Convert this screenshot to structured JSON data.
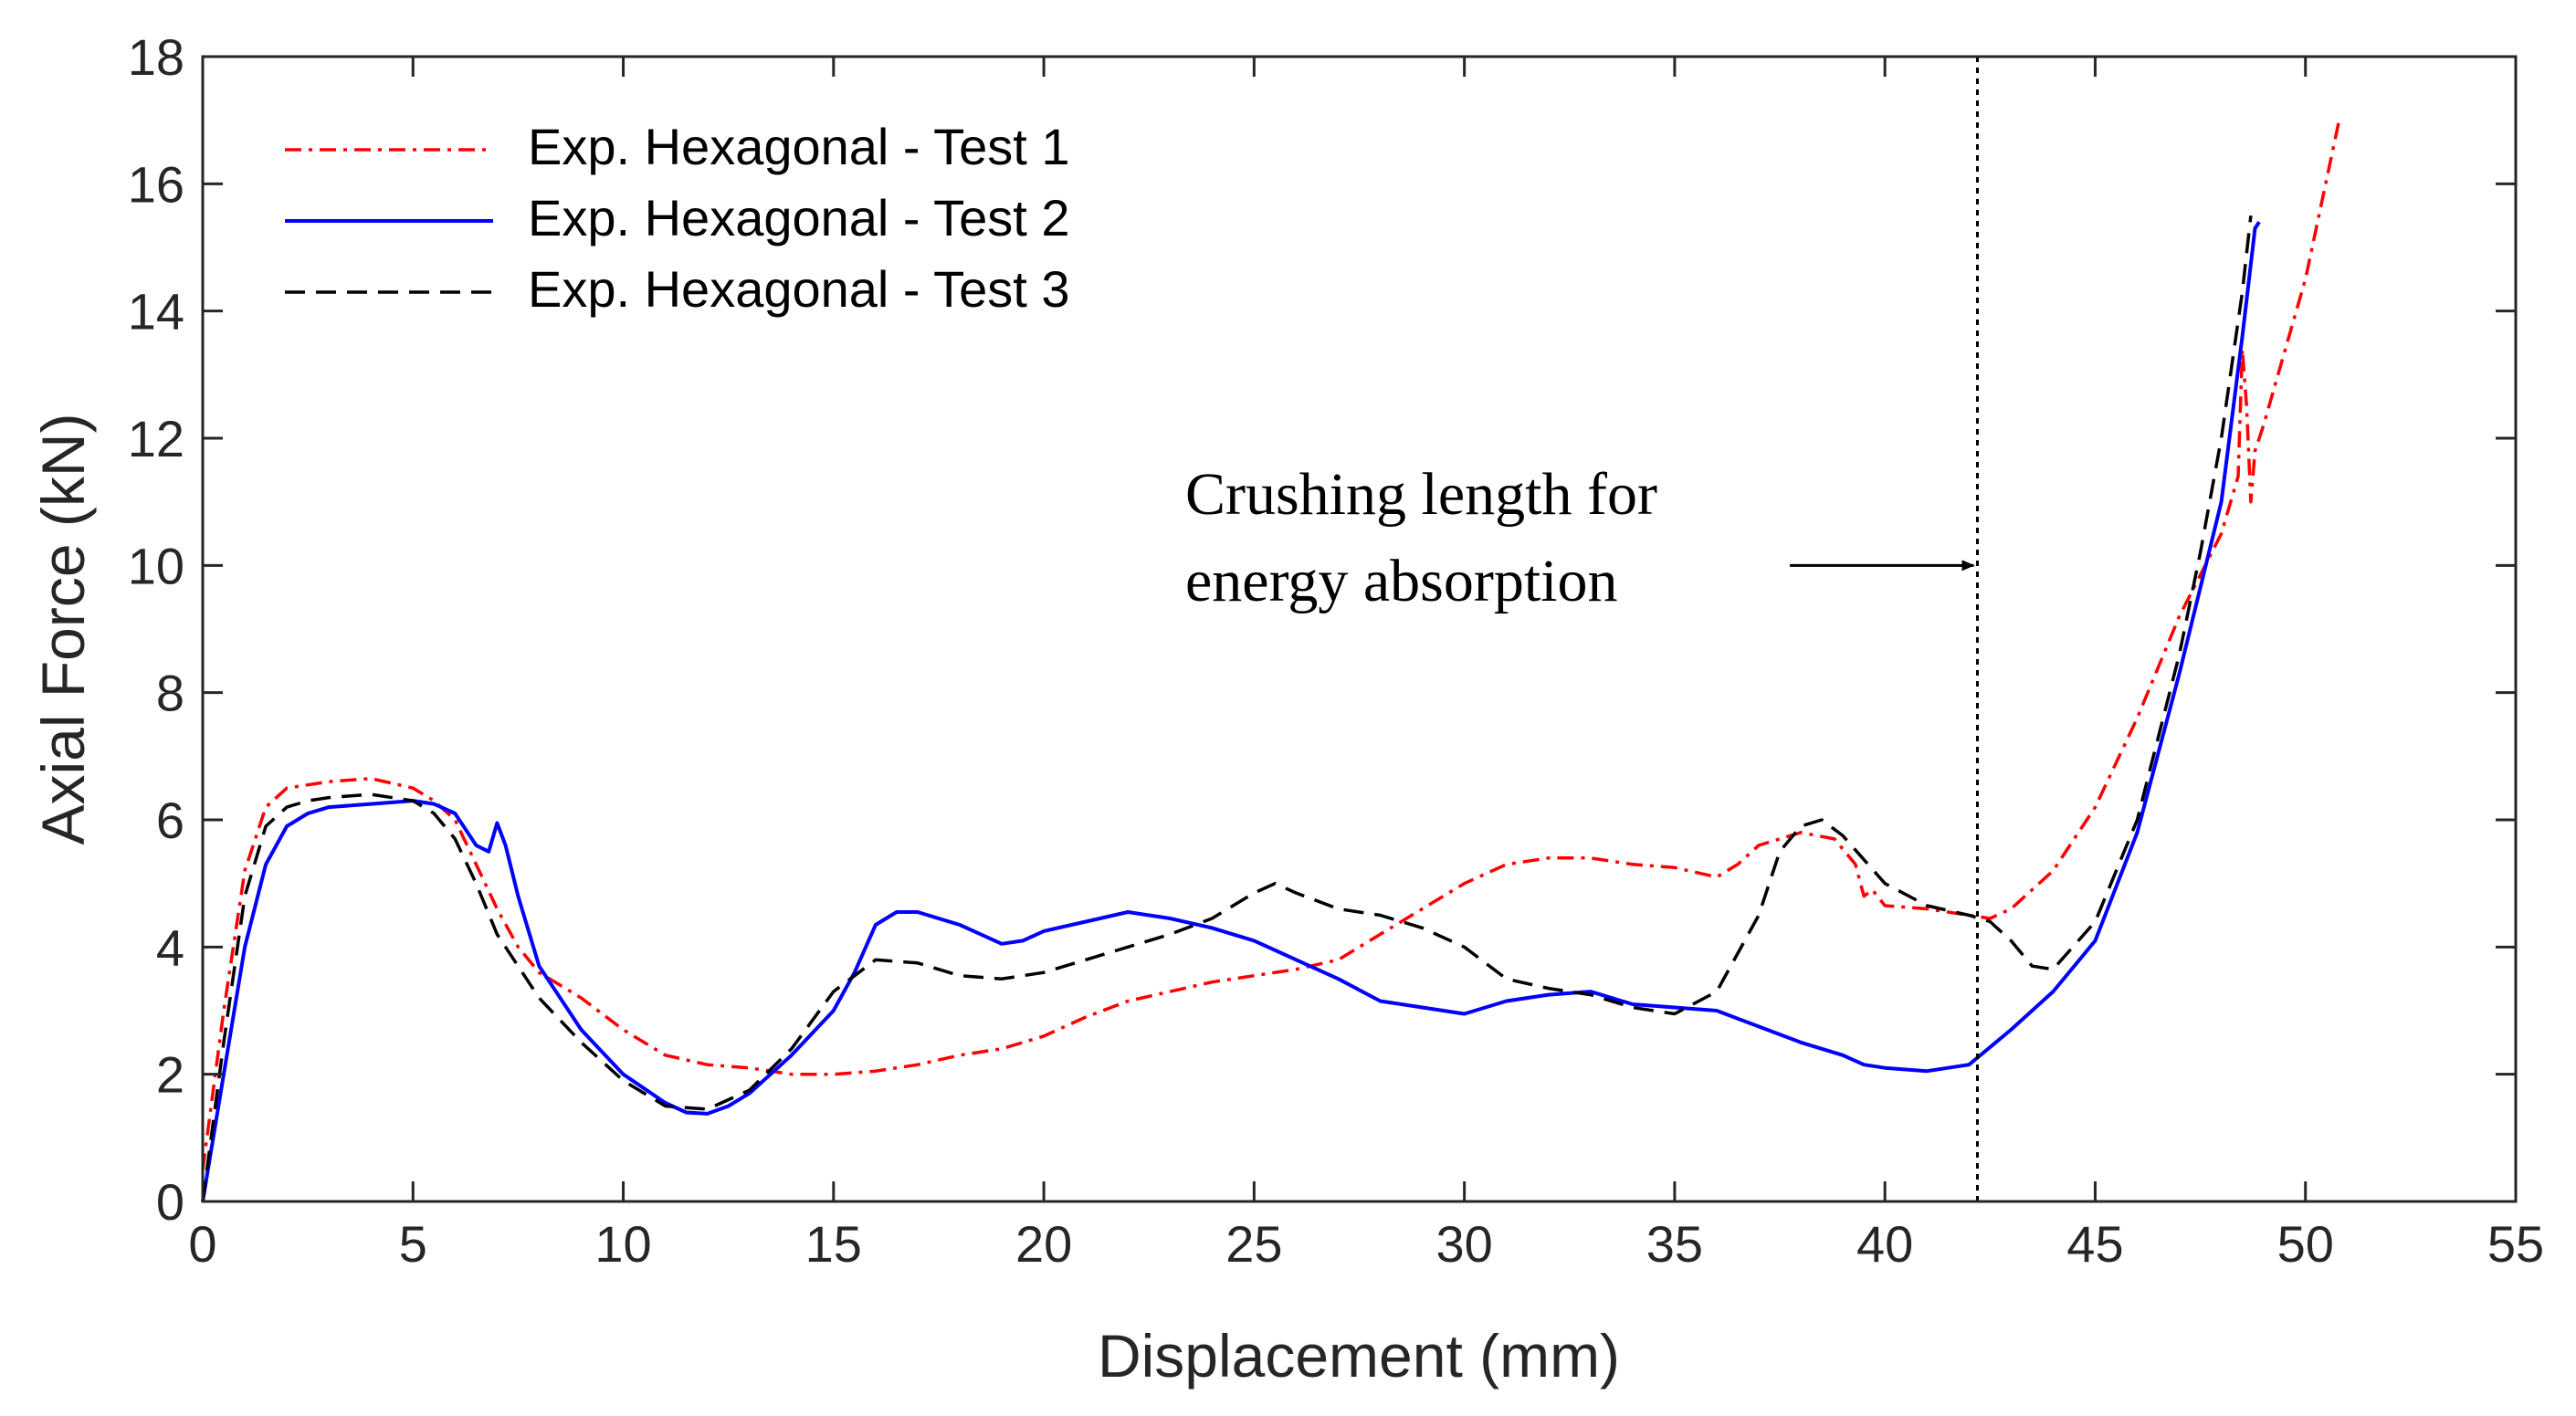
{
  "chart_data": {
    "type": "line",
    "title": "",
    "xlabel": "Displacement (mm)",
    "ylabel": "Axial Force (kN)",
    "xlim": [
      0,
      55
    ],
    "ylim": [
      0,
      18
    ],
    "xticks": [
      "0",
      "5",
      "10",
      "15",
      "20",
      "25",
      "30",
      "35",
      "40",
      "45",
      "50",
      "55"
    ],
    "yticks": [
      "0",
      "2",
      "4",
      "6",
      "8",
      "10",
      "12",
      "14",
      "16",
      "18"
    ],
    "grid": false,
    "legend_position": "top-left",
    "series": [
      {
        "name": "Exp. Hexagonal - Test 1",
        "color": "#ff0000",
        "style": "dash-dot",
        "x": [
          0,
          0.5,
          1,
          1.5,
          2,
          2.5,
          3,
          4,
          5,
          5.5,
          6,
          6.5,
          7,
          7.5,
          8,
          9,
          10,
          11,
          12,
          13,
          14,
          15,
          16,
          17,
          18,
          19,
          20,
          21,
          22,
          23,
          24,
          25,
          26,
          27,
          28,
          29,
          30,
          31,
          32,
          33,
          34,
          35,
          36,
          36.5,
          37,
          38,
          38.8,
          39.3,
          39.5,
          39.7,
          40,
          41,
          42,
          42.5,
          43,
          44,
          45,
          46,
          47,
          48,
          48.4,
          48.5,
          48.6,
          48.7,
          48.8,
          49,
          50,
          50.8
        ],
        "y": [
          0.5,
          3.0,
          5.2,
          6.2,
          6.5,
          6.55,
          6.6,
          6.65,
          6.5,
          6.3,
          6.0,
          5.3,
          4.6,
          4.0,
          3.6,
          3.2,
          2.7,
          2.3,
          2.15,
          2.1,
          2.0,
          2.0,
          2.05,
          2.15,
          2.3,
          2.4,
          2.6,
          2.9,
          3.15,
          3.3,
          3.45,
          3.55,
          3.65,
          3.8,
          4.2,
          4.6,
          5.0,
          5.3,
          5.4,
          5.4,
          5.3,
          5.25,
          5.1,
          5.3,
          5.6,
          5.8,
          5.7,
          5.3,
          4.8,
          4.9,
          4.65,
          4.6,
          4.5,
          4.45,
          4.6,
          5.2,
          6.2,
          7.6,
          9.2,
          10.5,
          11.4,
          13.4,
          12.5,
          11.0,
          11.8,
          12.2,
          14.5,
          17.0
        ]
      },
      {
        "name": "Exp. Hexagonal - Test 2",
        "color": "#0000ff",
        "style": "solid",
        "x": [
          0,
          0.5,
          1,
          1.5,
          2,
          2.5,
          3,
          4,
          5,
          5.5,
          6,
          6.5,
          6.8,
          7,
          7.2,
          7.5,
          8,
          9,
          10,
          11,
          11.5,
          12,
          12.5,
          13,
          14,
          15,
          15.5,
          16,
          16.5,
          17,
          18,
          19,
          19.5,
          20,
          21,
          22,
          22.5,
          23,
          24,
          25,
          26,
          27,
          28,
          29,
          30,
          30.5,
          31,
          32,
          33,
          34,
          35,
          36,
          37,
          38,
          39,
          39.5,
          40,
          41,
          42,
          43,
          44,
          45,
          46,
          47,
          48,
          48.5,
          48.8,
          48.9
        ],
        "y": [
          0,
          2.0,
          4.0,
          5.3,
          5.9,
          6.1,
          6.2,
          6.25,
          6.3,
          6.25,
          6.1,
          5.6,
          5.5,
          5.95,
          5.6,
          4.8,
          3.7,
          2.7,
          2.0,
          1.55,
          1.4,
          1.38,
          1.5,
          1.7,
          2.3,
          3.0,
          3.6,
          4.35,
          4.55,
          4.55,
          4.35,
          4.05,
          4.1,
          4.25,
          4.4,
          4.55,
          4.5,
          4.45,
          4.3,
          4.1,
          3.8,
          3.5,
          3.15,
          3.05,
          2.95,
          3.05,
          3.15,
          3.25,
          3.3,
          3.1,
          3.05,
          3.0,
          2.75,
          2.5,
          2.3,
          2.15,
          2.1,
          2.05,
          2.15,
          2.7,
          3.3,
          4.1,
          5.8,
          8.3,
          11.0,
          13.6,
          15.3,
          15.4
        ]
      },
      {
        "name": "Exp. Hexagonal - Test 3",
        "color": "#000000",
        "style": "dashed",
        "x": [
          0,
          0.5,
          1,
          1.5,
          2,
          2.5,
          3,
          4,
          5,
          5.5,
          6,
          6.5,
          7,
          8,
          9,
          10,
          11,
          12,
          13,
          14,
          15,
          16,
          17,
          18,
          19,
          20,
          21,
          22,
          23,
          24,
          25,
          25.5,
          26,
          27,
          28,
          29,
          30,
          31,
          32,
          33,
          34,
          35,
          36,
          37,
          37.5,
          38,
          38.5,
          39,
          40,
          41,
          42,
          42.5,
          43,
          43.5,
          44,
          45,
          46,
          47,
          47.5,
          48,
          48.5,
          48.7
        ],
        "y": [
          0,
          2.5,
          4.8,
          5.9,
          6.2,
          6.3,
          6.35,
          6.4,
          6.3,
          6.1,
          5.7,
          5.0,
          4.2,
          3.2,
          2.5,
          1.9,
          1.5,
          1.45,
          1.75,
          2.4,
          3.3,
          3.8,
          3.75,
          3.55,
          3.5,
          3.6,
          3.8,
          4.0,
          4.2,
          4.45,
          4.85,
          5.0,
          4.85,
          4.6,
          4.5,
          4.3,
          4.0,
          3.5,
          3.35,
          3.25,
          3.05,
          2.95,
          3.3,
          4.5,
          5.5,
          5.9,
          6.0,
          5.75,
          5.0,
          4.65,
          4.5,
          4.4,
          4.1,
          3.7,
          3.65,
          4.4,
          6.0,
          8.6,
          10.2,
          12.0,
          14.3,
          15.5
        ]
      }
    ],
    "annotations": [
      {
        "type": "vline",
        "x": 42.2,
        "style": "dotted",
        "color": "#000000"
      },
      {
        "type": "text_arrow",
        "text_lines": [
          "Crushing length for",
          "energy absorption"
        ],
        "arrow_to": [
          42.2,
          10
        ]
      }
    ]
  }
}
